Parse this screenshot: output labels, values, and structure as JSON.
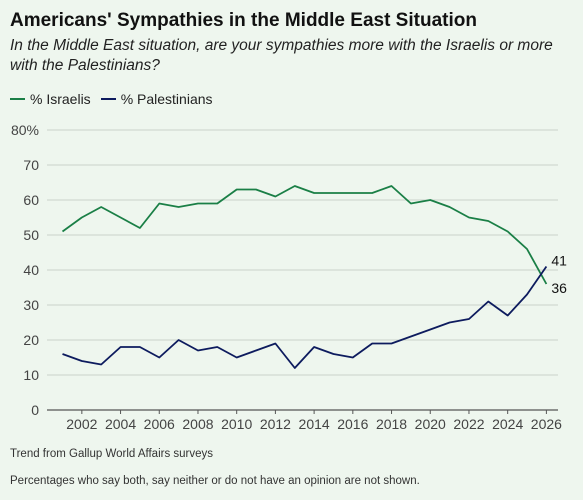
{
  "chart_data": {
    "type": "line",
    "title": "Americans' Sympathies in the Middle East Situation",
    "subtitle": "In the Middle East situation, are your sympathies more with the Israelis or more with the Palestinians?",
    "xlabel": "",
    "ylabel": "",
    "x": [
      2001,
      2002,
      2003,
      2004,
      2005,
      2006,
      2007,
      2008,
      2009,
      2010,
      2011,
      2012,
      2013,
      2014,
      2015,
      2016,
      2017,
      2018,
      2019,
      2020,
      2021,
      2022,
      2023,
      2024,
      2025,
      2026
    ],
    "xticks": [
      "2002",
      "2004",
      "2006",
      "2008",
      "2010",
      "2012",
      "2014",
      "2016",
      "2018",
      "2020",
      "2022",
      "2024",
      "2026"
    ],
    "xlim": [
      2000.2,
      2026.6
    ],
    "ylim": [
      0,
      80
    ],
    "yticks": [
      "0",
      "10",
      "20",
      "30",
      "40",
      "50",
      "60",
      "70",
      "80%"
    ],
    "grid": true,
    "legend_position": "top-left",
    "series": [
      {
        "name": "% Israelis",
        "color": "#1a7f46",
        "values": [
          51,
          55,
          58,
          55,
          52,
          59,
          58,
          59,
          59,
          63,
          63,
          61,
          64,
          62,
          62,
          62,
          62,
          64,
          59,
          60,
          58,
          55,
          54,
          51,
          46,
          36
        ],
        "end_label": "36"
      },
      {
        "name": "% Palestinians",
        "color": "#0d1b5e",
        "values": [
          16,
          14,
          13,
          18,
          18,
          15,
          20,
          17,
          18,
          15,
          17,
          19,
          12,
          18,
          16,
          15,
          19,
          19,
          21,
          23,
          25,
          26,
          31,
          27,
          33,
          41
        ],
        "end_label": "41"
      }
    ]
  },
  "notes": {
    "source": "Trend from Gallup World Affairs surveys",
    "footnote": "Percentages who say both, say neither or do not have an opinion are not shown."
  }
}
